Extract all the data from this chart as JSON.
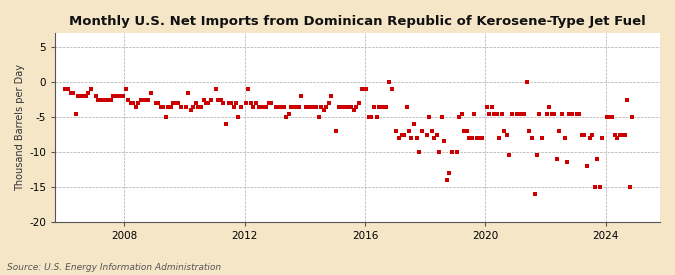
{
  "title": "Monthly U.S. Net Imports from Dominican Republic of Kerosene-Type Jet Fuel",
  "ylabel": "Thousand Barrels per Day",
  "source": "Source: U.S. Energy Information Administration",
  "fig_background_color": "#f5e6c8",
  "plot_background_color": "#ffffff",
  "marker_color": "#cc0000",
  "ylim": [
    -20,
    7
  ],
  "yticks": [
    -20,
    -15,
    -10,
    -5,
    0,
    5
  ],
  "xlim_start": 2005.7,
  "xlim_end": 2025.8,
  "xticks": [
    2008,
    2012,
    2016,
    2020,
    2024
  ],
  "grid_color": "#aaaaaa",
  "spine_color": "#555555",
  "data_points": [
    [
      2006.04,
      -1.0
    ],
    [
      2006.12,
      -1.0
    ],
    [
      2006.21,
      -1.5
    ],
    [
      2006.29,
      -1.5
    ],
    [
      2006.38,
      -4.5
    ],
    [
      2006.46,
      -2.0
    ],
    [
      2006.54,
      -2.0
    ],
    [
      2006.63,
      -2.0
    ],
    [
      2006.71,
      -2.0
    ],
    [
      2006.79,
      -1.5
    ],
    [
      2006.88,
      -1.0
    ],
    [
      2007.04,
      -2.0
    ],
    [
      2007.12,
      -2.5
    ],
    [
      2007.21,
      -2.5
    ],
    [
      2007.29,
      -2.5
    ],
    [
      2007.38,
      -2.5
    ],
    [
      2007.46,
      -2.5
    ],
    [
      2007.54,
      -2.5
    ],
    [
      2007.63,
      -2.0
    ],
    [
      2007.71,
      -2.0
    ],
    [
      2007.79,
      -2.0
    ],
    [
      2007.88,
      -2.0
    ],
    [
      2007.96,
      -2.0
    ],
    [
      2008.04,
      -1.0
    ],
    [
      2008.12,
      -2.5
    ],
    [
      2008.21,
      -3.0
    ],
    [
      2008.29,
      -3.0
    ],
    [
      2008.38,
      -3.5
    ],
    [
      2008.46,
      -3.0
    ],
    [
      2008.54,
      -2.5
    ],
    [
      2008.63,
      -2.5
    ],
    [
      2008.71,
      -2.5
    ],
    [
      2008.79,
      -2.5
    ],
    [
      2008.88,
      -1.5
    ],
    [
      2009.04,
      -3.0
    ],
    [
      2009.12,
      -3.0
    ],
    [
      2009.21,
      -3.5
    ],
    [
      2009.29,
      -3.5
    ],
    [
      2009.38,
      -5.0
    ],
    [
      2009.46,
      -3.5
    ],
    [
      2009.54,
      -3.5
    ],
    [
      2009.63,
      -3.0
    ],
    [
      2009.71,
      -3.0
    ],
    [
      2009.79,
      -3.0
    ],
    [
      2009.88,
      -3.5
    ],
    [
      2010.04,
      -3.5
    ],
    [
      2010.12,
      -1.5
    ],
    [
      2010.21,
      -4.0
    ],
    [
      2010.29,
      -3.5
    ],
    [
      2010.38,
      -3.0
    ],
    [
      2010.46,
      -3.5
    ],
    [
      2010.54,
      -3.5
    ],
    [
      2010.63,
      -2.5
    ],
    [
      2010.71,
      -3.0
    ],
    [
      2010.79,
      -3.0
    ],
    [
      2010.88,
      -2.5
    ],
    [
      2011.04,
      -1.0
    ],
    [
      2011.12,
      -2.5
    ],
    [
      2011.21,
      -2.5
    ],
    [
      2011.29,
      -3.0
    ],
    [
      2011.38,
      -6.0
    ],
    [
      2011.46,
      -3.0
    ],
    [
      2011.54,
      -3.0
    ],
    [
      2011.63,
      -3.5
    ],
    [
      2011.71,
      -3.0
    ],
    [
      2011.79,
      -5.0
    ],
    [
      2011.88,
      -3.5
    ],
    [
      2012.04,
      -3.0
    ],
    [
      2012.12,
      -1.0
    ],
    [
      2012.21,
      -3.0
    ],
    [
      2012.29,
      -3.5
    ],
    [
      2012.38,
      -3.0
    ],
    [
      2012.46,
      -3.5
    ],
    [
      2012.54,
      -3.5
    ],
    [
      2012.63,
      -3.5
    ],
    [
      2012.71,
      -3.5
    ],
    [
      2012.79,
      -3.0
    ],
    [
      2012.88,
      -3.0
    ],
    [
      2013.04,
      -3.5
    ],
    [
      2013.12,
      -3.5
    ],
    [
      2013.21,
      -3.5
    ],
    [
      2013.29,
      -3.5
    ],
    [
      2013.38,
      -5.0
    ],
    [
      2013.46,
      -4.5
    ],
    [
      2013.54,
      -3.5
    ],
    [
      2013.63,
      -3.5
    ],
    [
      2013.71,
      -3.5
    ],
    [
      2013.79,
      -3.5
    ],
    [
      2013.88,
      -2.0
    ],
    [
      2014.04,
      -3.5
    ],
    [
      2014.12,
      -3.5
    ],
    [
      2014.21,
      -3.5
    ],
    [
      2014.29,
      -3.5
    ],
    [
      2014.38,
      -3.5
    ],
    [
      2014.46,
      -5.0
    ],
    [
      2014.54,
      -3.5
    ],
    [
      2014.63,
      -4.0
    ],
    [
      2014.71,
      -3.5
    ],
    [
      2014.79,
      -3.0
    ],
    [
      2014.88,
      -2.0
    ],
    [
      2015.04,
      -7.0
    ],
    [
      2015.12,
      -3.5
    ],
    [
      2015.21,
      -3.5
    ],
    [
      2015.29,
      -3.5
    ],
    [
      2015.38,
      -3.5
    ],
    [
      2015.46,
      -3.5
    ],
    [
      2015.54,
      -3.5
    ],
    [
      2015.63,
      -4.0
    ],
    [
      2015.71,
      -3.5
    ],
    [
      2015.79,
      -3.0
    ],
    [
      2015.88,
      -1.0
    ],
    [
      2016.04,
      -1.0
    ],
    [
      2016.12,
      -5.0
    ],
    [
      2016.21,
      -5.0
    ],
    [
      2016.29,
      -3.5
    ],
    [
      2016.38,
      -5.0
    ],
    [
      2016.46,
      -3.5
    ],
    [
      2016.54,
      -3.5
    ],
    [
      2016.63,
      -3.5
    ],
    [
      2016.71,
      -3.5
    ],
    [
      2016.79,
      0.0
    ],
    [
      2016.88,
      -1.0
    ],
    [
      2017.04,
      -7.0
    ],
    [
      2017.12,
      -8.0
    ],
    [
      2017.21,
      -7.5
    ],
    [
      2017.29,
      -7.5
    ],
    [
      2017.38,
      -3.5
    ],
    [
      2017.46,
      -7.0
    ],
    [
      2017.54,
      -8.0
    ],
    [
      2017.63,
      -6.0
    ],
    [
      2017.71,
      -8.0
    ],
    [
      2017.79,
      -10.0
    ],
    [
      2017.88,
      -7.0
    ],
    [
      2018.04,
      -7.5
    ],
    [
      2018.12,
      -5.0
    ],
    [
      2018.21,
      -7.0
    ],
    [
      2018.29,
      -8.0
    ],
    [
      2018.38,
      -7.5
    ],
    [
      2018.46,
      -10.0
    ],
    [
      2018.54,
      -5.0
    ],
    [
      2018.63,
      -8.5
    ],
    [
      2018.71,
      -14.0
    ],
    [
      2018.79,
      -13.0
    ],
    [
      2018.88,
      -10.0
    ],
    [
      2019.04,
      -10.0
    ],
    [
      2019.12,
      -5.0
    ],
    [
      2019.21,
      -4.5
    ],
    [
      2019.29,
      -7.0
    ],
    [
      2019.38,
      -7.0
    ],
    [
      2019.46,
      -8.0
    ],
    [
      2019.54,
      -8.0
    ],
    [
      2019.63,
      -4.5
    ],
    [
      2019.71,
      -8.0
    ],
    [
      2019.79,
      -8.0
    ],
    [
      2019.88,
      -8.0
    ],
    [
      2020.04,
      -3.5
    ],
    [
      2020.12,
      -4.5
    ],
    [
      2020.21,
      -3.5
    ],
    [
      2020.29,
      -4.5
    ],
    [
      2020.38,
      -4.5
    ],
    [
      2020.46,
      -8.0
    ],
    [
      2020.54,
      -4.5
    ],
    [
      2020.63,
      -7.0
    ],
    [
      2020.71,
      -7.5
    ],
    [
      2020.79,
      -10.5
    ],
    [
      2020.88,
      -4.5
    ],
    [
      2021.04,
      -4.5
    ],
    [
      2021.12,
      -4.5
    ],
    [
      2021.21,
      -4.5
    ],
    [
      2021.29,
      -4.5
    ],
    [
      2021.38,
      0.0
    ],
    [
      2021.46,
      -7.0
    ],
    [
      2021.54,
      -8.0
    ],
    [
      2021.63,
      -16.0
    ],
    [
      2021.71,
      -10.5
    ],
    [
      2021.79,
      -4.5
    ],
    [
      2021.88,
      -8.0
    ],
    [
      2022.04,
      -4.5
    ],
    [
      2022.12,
      -3.5
    ],
    [
      2022.21,
      -4.5
    ],
    [
      2022.29,
      -4.5
    ],
    [
      2022.38,
      -11.0
    ],
    [
      2022.46,
      -7.0
    ],
    [
      2022.54,
      -4.5
    ],
    [
      2022.63,
      -8.0
    ],
    [
      2022.71,
      -11.5
    ],
    [
      2022.79,
      -4.5
    ],
    [
      2022.88,
      -4.5
    ],
    [
      2023.04,
      -4.5
    ],
    [
      2023.12,
      -4.5
    ],
    [
      2023.21,
      -7.5
    ],
    [
      2023.29,
      -7.5
    ],
    [
      2023.38,
      -12.0
    ],
    [
      2023.46,
      -8.0
    ],
    [
      2023.54,
      -7.5
    ],
    [
      2023.63,
      -15.0
    ],
    [
      2023.71,
      -11.0
    ],
    [
      2023.79,
      -15.0
    ],
    [
      2023.88,
      -8.0
    ],
    [
      2024.04,
      -5.0
    ],
    [
      2024.12,
      -5.0
    ],
    [
      2024.21,
      -5.0
    ],
    [
      2024.29,
      -7.5
    ],
    [
      2024.38,
      -8.0
    ],
    [
      2024.46,
      -7.5
    ],
    [
      2024.54,
      -7.5
    ],
    [
      2024.63,
      -7.5
    ],
    [
      2024.71,
      -2.5
    ],
    [
      2024.79,
      -15.0
    ],
    [
      2024.88,
      -5.0
    ]
  ]
}
